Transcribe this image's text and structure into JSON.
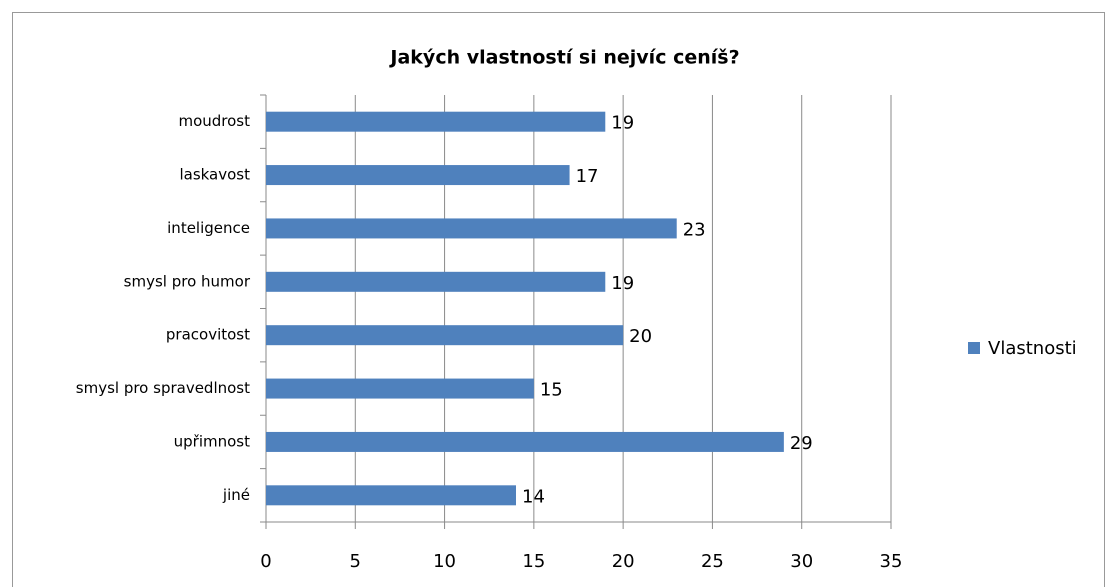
{
  "chart_data": {
    "type": "bar",
    "orientation": "horizontal",
    "title": "Jakých vlastností si nejvíc ceníš?",
    "categories": [
      "moudrost",
      "laskavost",
      "inteligence",
      "smysl pro humor",
      "pracovitost",
      "smysl pro spravedlnost",
      "upřimnost",
      "jiné"
    ],
    "series": [
      {
        "name": "Vlastnosti",
        "color": "#4f81bd",
        "values": [
          19,
          17,
          23,
          19,
          20,
          15,
          29,
          14
        ]
      }
    ],
    "xlim": [
      0,
      35
    ],
    "xticks": [
      0,
      5,
      10,
      15,
      20,
      25,
      30,
      35
    ],
    "grid": true,
    "legend": "right"
  }
}
